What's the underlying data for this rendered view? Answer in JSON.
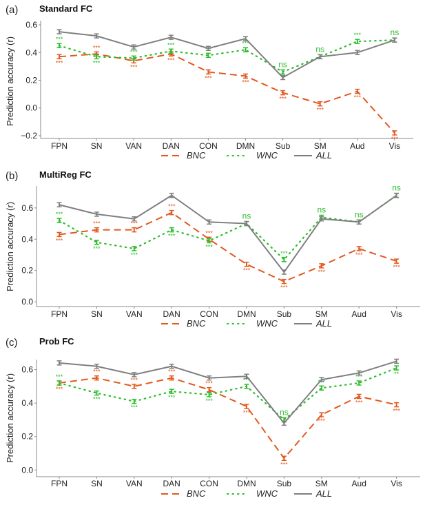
{
  "chart_data": [
    {
      "type": "line",
      "panel_label": "(a)",
      "title": "Standard FC",
      "xlabel": "",
      "ylabel": "Prediction accuracy (r)",
      "categories": [
        "FPN",
        "SN",
        "VAN",
        "DAN",
        "CON",
        "DMN",
        "Sub",
        "SM",
        "Aud",
        "Vis"
      ],
      "ylim": [
        -0.22,
        0.63
      ],
      "yticks": [
        -0.2,
        0.0,
        0.2,
        0.4,
        0.6
      ],
      "ytick_labels": [
        "-0.2",
        "0.0",
        "0.2",
        "0.4",
        "0.6"
      ],
      "grid": false,
      "legend_position": "bottom",
      "series": [
        {
          "name": "BNC",
          "color": "#e2581e",
          "style": "dashed",
          "values": [
            0.37,
            0.39,
            0.34,
            0.39,
            0.26,
            0.23,
            0.11,
            0.03,
            0.12,
            -0.18
          ],
          "significance": [
            "***",
            "***",
            "***",
            "***",
            "***",
            "***",
            "***",
            "***",
            "***",
            "***"
          ],
          "sig_position": [
            "below",
            "above",
            "below",
            "below",
            "below",
            "below",
            "below",
            "below",
            "below",
            "below"
          ]
        },
        {
          "name": "WNC",
          "color": "#2bbd2b",
          "style": "dotted",
          "values": [
            0.45,
            0.37,
            0.36,
            0.41,
            0.38,
            0.42,
            0.26,
            0.37,
            0.48,
            0.49
          ],
          "significance": [
            "***",
            "***",
            "***",
            "***",
            "***",
            "***",
            "ns",
            "ns",
            "***",
            "ns"
          ],
          "sig_position": [
            "above",
            "below",
            "above",
            "above",
            "above",
            "above",
            "above",
            "above",
            "above",
            "above"
          ]
        },
        {
          "name": "ALL",
          "color": "#7f7f7f",
          "style": "solid",
          "values": [
            0.55,
            0.52,
            0.44,
            0.51,
            0.43,
            0.5,
            0.22,
            0.37,
            0.4,
            0.49
          ]
        }
      ]
    },
    {
      "type": "line",
      "panel_label": "(b)",
      "title": "MultiReg FC",
      "xlabel": "",
      "ylabel": "Prediction accuracy (r)",
      "categories": [
        "FPN",
        "SN",
        "VAN",
        "DAN",
        "CON",
        "DMN",
        "Sub",
        "SM",
        "Aud",
        "Vis"
      ],
      "ylim": [
        -0.03,
        0.74
      ],
      "yticks": [
        0.0,
        0.2,
        0.4,
        0.6
      ],
      "ytick_labels": [
        "0.0",
        "0.2",
        "0.4",
        "0.6"
      ],
      "grid": false,
      "legend_position": "bottom",
      "series": [
        {
          "name": "BNC",
          "color": "#e2581e",
          "style": "dashed",
          "values": [
            0.43,
            0.46,
            0.46,
            0.57,
            0.4,
            0.24,
            0.13,
            0.23,
            0.34,
            0.26
          ],
          "significance": [
            "***",
            "***",
            "***",
            "***",
            "***",
            "***",
            "***",
            "***",
            "***",
            "***"
          ],
          "sig_position": [
            "below",
            "above",
            "above",
            "above",
            "above",
            "below",
            "below",
            "below",
            "below",
            "below"
          ]
        },
        {
          "name": "WNC",
          "color": "#2bbd2b",
          "style": "dotted",
          "values": [
            0.52,
            0.38,
            0.34,
            0.46,
            0.39,
            0.5,
            0.27,
            0.54,
            0.51,
            0.68
          ],
          "significance": [
            "***",
            "***",
            "***",
            "***",
            "***",
            "ns",
            "***",
            "ns",
            "ns",
            "ns"
          ],
          "sig_position": [
            "above",
            "below",
            "below",
            "below",
            "below",
            "above",
            "above",
            "above",
            "above",
            "above"
          ]
        },
        {
          "name": "ALL",
          "color": "#7f7f7f",
          "style": "solid",
          "values": [
            0.62,
            0.56,
            0.53,
            0.68,
            0.51,
            0.5,
            0.19,
            0.53,
            0.51,
            0.68
          ]
        }
      ]
    },
    {
      "type": "line",
      "panel_label": "(c)",
      "title": "Prob FC",
      "xlabel": "",
      "ylabel": "Prediction accuracy (r)",
      "categories": [
        "FPN",
        "SN",
        "VAN",
        "DAN",
        "CON",
        "DMN",
        "Sub",
        "SM",
        "Aud",
        "Vis"
      ],
      "ylim": [
        -0.04,
        0.66
      ],
      "yticks": [
        0.0,
        0.2,
        0.4,
        0.6
      ],
      "ytick_labels": [
        "0.0",
        "0.2",
        "0.4",
        "0.6"
      ],
      "grid": false,
      "legend_position": "bottom",
      "series": [
        {
          "name": "BNC",
          "color": "#e2581e",
          "style": "dashed",
          "values": [
            0.52,
            0.55,
            0.5,
            0.55,
            0.48,
            0.38,
            0.07,
            0.33,
            0.44,
            0.39
          ],
          "significance": [
            "***",
            "***",
            "***",
            "***",
            "***",
            "***",
            "***",
            "***",
            "***",
            "***"
          ],
          "sig_position": [
            "below",
            "above",
            "above",
            "above",
            "above",
            "below",
            "below",
            "below",
            "below",
            "below"
          ]
        },
        {
          "name": "WNC",
          "color": "#2bbd2b",
          "style": "dotted",
          "values": [
            0.52,
            0.46,
            0.41,
            0.47,
            0.45,
            0.5,
            0.3,
            0.49,
            0.52,
            0.61
          ],
          "significance": [
            "***",
            "***",
            "***",
            "***",
            "***",
            "***",
            "ns",
            "***",
            "***",
            "**"
          ],
          "sig_position": [
            "above",
            "below",
            "below",
            "below",
            "below",
            "above",
            "above",
            "above",
            "above",
            "below"
          ]
        },
        {
          "name": "ALL",
          "color": "#7f7f7f",
          "style": "solid",
          "values": [
            0.64,
            0.62,
            0.57,
            0.62,
            0.55,
            0.56,
            0.28,
            0.54,
            0.58,
            0.65
          ]
        }
      ]
    }
  ]
}
